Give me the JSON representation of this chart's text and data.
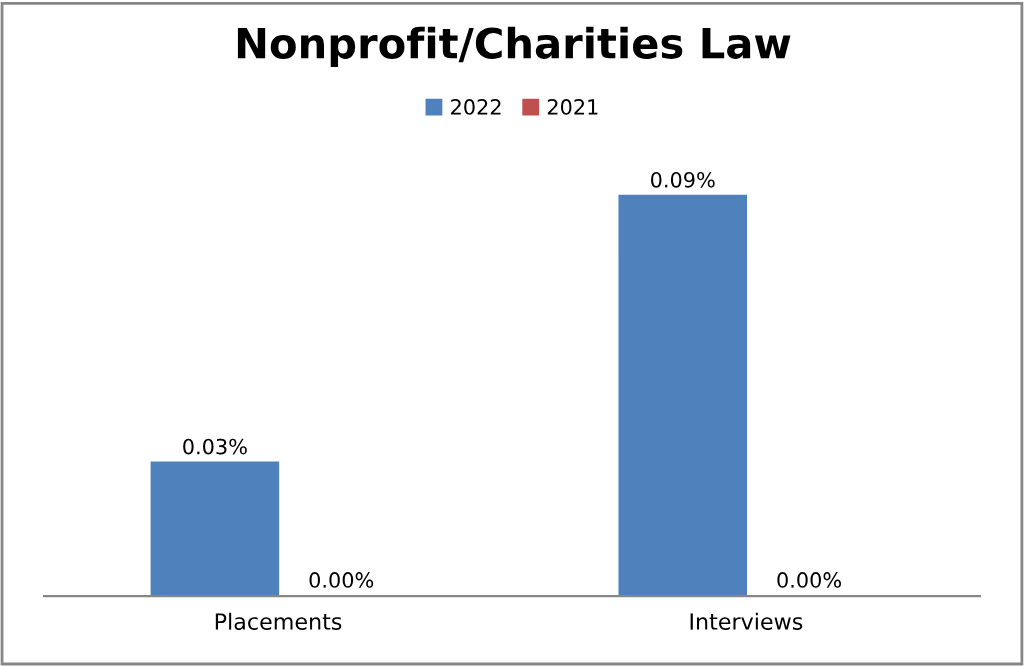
{
  "chart_data": {
    "type": "bar",
    "title": "Nonprofit/Charities Law",
    "categories": [
      "Placements",
      "Interviews"
    ],
    "series": [
      {
        "name": "2022",
        "color": "#4f81bd",
        "values": [
          0.03,
          0.09
        ],
        "value_labels": [
          "0.03%",
          "0.09%"
        ]
      },
      {
        "name": "2021",
        "color": "#c0504d",
        "values": [
          0.0,
          0.0
        ],
        "value_labels": [
          "0.00%",
          "0.00%"
        ]
      }
    ],
    "legend": "top",
    "grid": false
  }
}
